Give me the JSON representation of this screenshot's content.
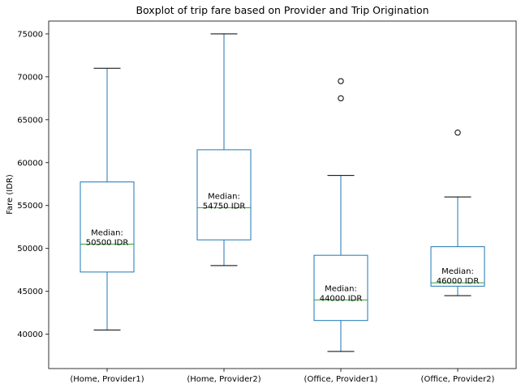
{
  "chart_data": {
    "type": "boxplot",
    "title": "Boxplot of trip fare based on Provider and Trip Origination",
    "xlabel": "",
    "ylabel": "Fare (IDR)",
    "ylim": [
      36000,
      76500
    ],
    "yticks": [
      40000,
      45000,
      50000,
      55000,
      60000,
      65000,
      70000,
      75000
    ],
    "grid": false,
    "categories": [
      "(Home, Provider1)",
      "(Home, Provider2)",
      "(Office, Provider1)",
      "(Office, Provider2)"
    ],
    "boxes": [
      {
        "whisker_low": 40500,
        "q1": 47250,
        "median": 50500,
        "q3": 57750,
        "whisker_high": 71000,
        "outliers": []
      },
      {
        "whisker_low": 48000,
        "q1": 51000,
        "median": 54750,
        "q3": 61500,
        "whisker_high": 75000,
        "outliers": []
      },
      {
        "whisker_low": 38000,
        "q1": 41600,
        "median": 44000,
        "q3": 49200,
        "whisker_high": 58500,
        "outliers": [
          67500,
          69500
        ]
      },
      {
        "whisker_low": 44500,
        "q1": 45600,
        "median": 46000,
        "q3": 50200,
        "whisker_high": 56000,
        "outliers": [
          63500
        ]
      }
    ],
    "annotations": [
      {
        "line1": "Median:",
        "line2": "50500 IDR"
      },
      {
        "line1": "Median:",
        "line2": "54750 IDR"
      },
      {
        "line1": "Median:",
        "line2": "44000 IDR"
      },
      {
        "line1": "Median:",
        "line2": "46000 IDR"
      }
    ],
    "colors": {
      "box": "#1f77b4",
      "median": "#2ca02c",
      "whisker": "#1f77b4",
      "cap": "#000000",
      "outlier": "#000000"
    }
  }
}
